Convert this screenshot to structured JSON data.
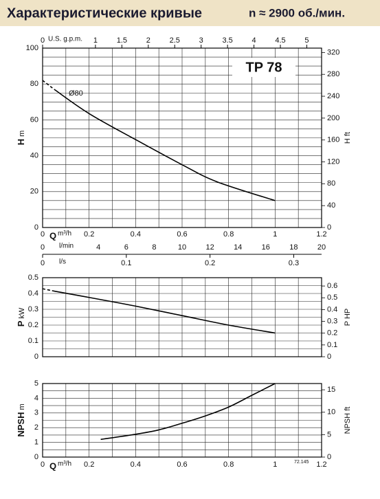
{
  "header": {
    "title": "Характеристические кривые",
    "speed": "n ≈ 2900 об./мин."
  },
  "chart_data": [
    {
      "type": "line",
      "model": "TP 78",
      "annotation": "Ø80",
      "x_label": "Q",
      "x_unit": "m³/h",
      "y_label": "H",
      "y_unit": "m",
      "y2_label": "H ft",
      "xlim": [
        0,
        1.2
      ],
      "xticks": [
        0,
        0.2,
        0.4,
        0.6,
        0.8,
        1,
        1.2
      ],
      "ylim": [
        0,
        100
      ],
      "yticks": [
        0,
        20,
        40,
        60,
        80,
        100
      ],
      "y2lim": [
        0,
        328
      ],
      "y2ticks": [
        0,
        40,
        80,
        120,
        160,
        200,
        240,
        280,
        320
      ],
      "grid": true,
      "extra_x_axes": [
        {
          "label": "U.S. g.p.m.",
          "lim": [
            0,
            5.28
          ],
          "ticks": [
            0,
            1,
            1.5,
            2,
            2.5,
            3,
            3.5,
            4,
            4.5,
            5
          ]
        },
        {
          "label": "l/min",
          "lim": [
            0,
            20
          ],
          "ticks": [
            0,
            4,
            6,
            8,
            10,
            12,
            14,
            16,
            18,
            20
          ]
        },
        {
          "label": "l/s",
          "lim": [
            0,
            0.3333
          ],
          "ticks": [
            0,
            0.1,
            0.2,
            0.3
          ]
        }
      ],
      "series": [
        {
          "color": "#000000",
          "line_style": "dashed",
          "x": [
            0,
            0.05
          ],
          "values": [
            82,
            77
          ]
        },
        {
          "color": "#000000",
          "line_style": "solid",
          "x": [
            0.05,
            0.2,
            0.4,
            0.6,
            0.75,
            1.0
          ],
          "values": [
            77,
            63.5,
            49,
            35,
            25.5,
            15
          ]
        }
      ]
    },
    {
      "type": "line",
      "y_label": "P",
      "y_unit": "kW",
      "y2_label": "P HP",
      "xlim": [
        0,
        1.2
      ],
      "ylim": [
        0,
        0.5
      ],
      "yticks": [
        0,
        0.1,
        0.2,
        0.3,
        0.4,
        0.5
      ],
      "y2lim": [
        0,
        0.6705
      ],
      "y2ticks": [
        0,
        0.1,
        0.2,
        0.3,
        0.4,
        0.5,
        0.6
      ],
      "grid": true,
      "series": [
        {
          "color": "#000000",
          "line_style": "dashed",
          "x": [
            0,
            0.05
          ],
          "values": [
            0.43,
            0.415
          ]
        },
        {
          "color": "#000000",
          "line_style": "solid",
          "x": [
            0.05,
            0.2,
            0.4,
            0.6,
            0.8,
            1.0
          ],
          "values": [
            0.415,
            0.375,
            0.32,
            0.26,
            0.2,
            0.15
          ]
        }
      ]
    },
    {
      "type": "line",
      "x_label": "Q",
      "x_unit": "m³/h",
      "y_label": "NPSH",
      "y_unit": "m",
      "y2_label": "NPSH ft",
      "code": "72.145",
      "xlim": [
        0,
        1.2
      ],
      "xticks": [
        0,
        0.2,
        0.4,
        0.6,
        0.8,
        1,
        1.2
      ],
      "ylim": [
        0,
        5
      ],
      "yticks": [
        0,
        1,
        2,
        3,
        4,
        5
      ],
      "y2lim": [
        0,
        16.4
      ],
      "y2ticks": [
        0,
        5,
        10,
        15
      ],
      "grid": true,
      "series": [
        {
          "color": "#000000",
          "line_style": "solid",
          "x": [
            0.25,
            0.4,
            0.5,
            0.6,
            0.7,
            0.8,
            0.9,
            1.0
          ],
          "values": [
            1.2,
            1.55,
            1.85,
            2.3,
            2.8,
            3.4,
            4.2,
            5.0
          ]
        }
      ]
    }
  ]
}
